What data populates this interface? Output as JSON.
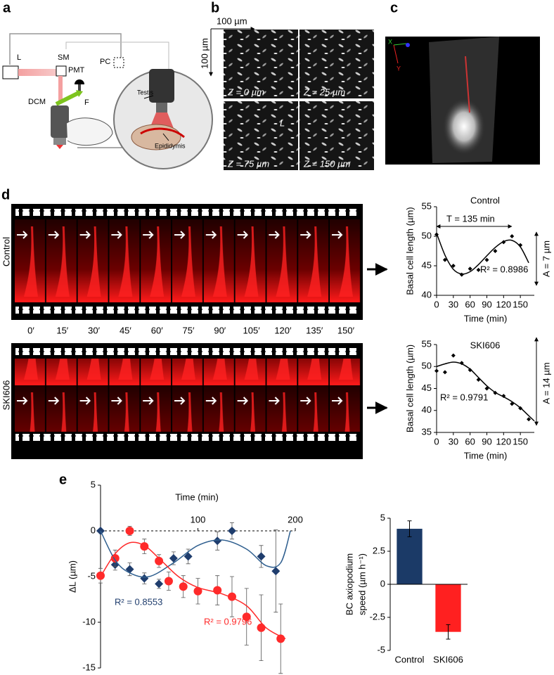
{
  "panel_labels": [
    "a",
    "b",
    "c",
    "d",
    "e"
  ],
  "panel_a": {
    "labels": [
      "L",
      "SM",
      "PC",
      "PMT",
      "DCM",
      "F",
      "Testis",
      "Epididymis"
    ]
  },
  "panel_b": {
    "scale_x": "100 µm",
    "scale_y": "100 µm",
    "tiles": [
      "Z = 0 µm",
      "Z = 25 µm",
      "Z = 75 µm",
      "Z = 150 µm"
    ],
    "marker": "L"
  },
  "panel_c": {
    "axes": [
      "X",
      "Y"
    ]
  },
  "panel_d": {
    "strips": [
      "Control",
      "SKI606"
    ],
    "times": [
      "0′",
      "15′",
      "30′",
      "45′",
      "60′",
      "75′",
      "90′",
      "105′",
      "120′",
      "135′",
      "150′"
    ]
  },
  "chart_data": [
    {
      "type": "scatter",
      "title": "Control",
      "xlabel": "Time (min)",
      "ylabel": "Basal cell length (µm)",
      "xlim": [
        0,
        175
      ],
      "ylim": [
        40,
        55
      ],
      "xticks": [
        0,
        30,
        60,
        90,
        120,
        150
      ],
      "yticks": [
        40,
        45,
        50,
        55
      ],
      "series": [
        {
          "x": [
            0,
            15,
            30,
            45,
            60,
            75,
            90,
            105,
            120,
            135,
            150
          ],
          "values": [
            50.3,
            46,
            45,
            43.5,
            44.5,
            44.3,
            46,
            47.5,
            49,
            50,
            48.5
          ],
          "color": "#000000",
          "marker": "diamond"
        },
        {
          "x": [
            0,
            15,
            30,
            45,
            60,
            75,
            90,
            105,
            120,
            135,
            150,
            165
          ],
          "values": [
            50.5,
            46.8,
            44.4,
            43.6,
            44,
            45.2,
            46.7,
            48.1,
            49.1,
            49.3,
            48.2,
            45.5
          ],
          "color": "#000000",
          "style": "line"
        }
      ],
      "annotations": [
        {
          "text": "T = 135 min",
          "color": "#000000"
        },
        {
          "text": "R² = 0.8986",
          "color": "#000000"
        },
        {
          "text": "A = 7 µm",
          "color": "#000000"
        }
      ]
    },
    {
      "type": "scatter",
      "title": "SKI606",
      "xlabel": "Time (min)",
      "ylabel": "Basal cell length (µm)",
      "xlim": [
        0,
        175
      ],
      "ylim": [
        35,
        55
      ],
      "xticks": [
        0,
        30,
        60,
        90,
        120,
        150
      ],
      "yticks": [
        35,
        40,
        45,
        50,
        55
      ],
      "series": [
        {
          "x": [
            0,
            15,
            30,
            45,
            60,
            75,
            90,
            105,
            120,
            135,
            150,
            165
          ],
          "values": [
            49,
            48.7,
            52.5,
            50.8,
            49.2,
            47,
            45,
            44,
            43.3,
            41.5,
            40.5,
            38
          ],
          "color": "#000000",
          "marker": "diamond"
        },
        {
          "x": [
            0,
            15,
            30,
            45,
            60,
            75,
            90,
            105,
            120,
            135,
            150,
            165,
            175
          ],
          "values": [
            50,
            50.6,
            51,
            50.6,
            49.4,
            47.5,
            45.6,
            44.1,
            43.1,
            42,
            40.6,
            38.8,
            37.6
          ],
          "color": "#000000",
          "style": "line"
        }
      ],
      "annotations": [
        {
          "text": "R² = 0.9791",
          "color": "#000000"
        },
        {
          "text": "A = 14 µm",
          "color": "#000000"
        }
      ]
    },
    {
      "type": "scatter",
      "xlabel": "Time (min)",
      "ylabel": "ΔL (µm)",
      "xlim": [
        0,
        200
      ],
      "ylim": [
        -15,
        5
      ],
      "xticks": [
        100,
        200
      ],
      "yticks": [
        -15,
        -10,
        -5,
        0,
        5
      ],
      "series": [
        {
          "x": [
            0,
            15,
            30,
            45,
            60,
            75,
            90,
            120,
            135,
            165,
            180
          ],
          "values": [
            0,
            -3.7,
            -4.2,
            -5.2,
            -5.8,
            -3,
            -2.8,
            -1.1,
            0,
            -2.8,
            -4.4
          ],
          "errors": [
            0,
            0.6,
            0.7,
            0.6,
            0.5,
            0.7,
            0.8,
            1,
            0.9,
            1.2,
            4.5
          ],
          "color": "#1f3d6d",
          "marker": "diamond"
        },
        {
          "x": [
            0,
            15,
            30,
            45,
            60,
            70,
            85,
            100,
            120,
            135,
            150,
            165,
            185
          ],
          "values": [
            -4.9,
            -3,
            0,
            -1.7,
            -3.3,
            -5.5,
            -6.1,
            -6.6,
            -6.5,
            -7.2,
            -9.4,
            -10.6,
            -11.8
          ],
          "errors": [
            0.8,
            0.9,
            0.5,
            0.8,
            0.7,
            1,
            1.2,
            1.4,
            1.6,
            2.2,
            3.1,
            3.6,
            3.8
          ],
          "color": "#ff2a2a",
          "marker": "circle"
        },
        {
          "x": [
            0,
            15,
            30,
            50,
            75,
            100,
            125,
            150,
            170,
            185,
            195
          ],
          "values": [
            0,
            -3.2,
            -4.6,
            -5,
            -3.5,
            -1.6,
            -1,
            -2,
            -3.8,
            -3.5,
            0
          ],
          "color": "#2f5f8f",
          "style": "line"
        },
        {
          "x": [
            0,
            15,
            30,
            45,
            60,
            80,
            100,
            125,
            150,
            170,
            190
          ],
          "values": [
            -5,
            -2.5,
            -1.3,
            -1.6,
            -3,
            -5,
            -6.2,
            -6.9,
            -8.2,
            -10.6,
            -11.8
          ],
          "color": "#ff2a2a",
          "style": "line"
        }
      ],
      "annotations": [
        {
          "text": "R² = 0.8553",
          "color": "#1f3d6d"
        },
        {
          "text": "R² = 0.9796",
          "color": "#ff2a2a"
        }
      ]
    },
    {
      "type": "bar",
      "ylabel": [
        "BC axiopodium",
        "speed (µm h⁻¹)"
      ],
      "categories": [
        "Control",
        "SKI606"
      ],
      "values": [
        4.2,
        -3.6
      ],
      "errors": [
        0.6,
        0.55
      ],
      "colors": [
        "#1b3a67",
        "#ff2020"
      ],
      "ylim": [
        -5,
        5
      ],
      "yticks": [
        -5,
        -2.5,
        0,
        2.5,
        5
      ]
    }
  ]
}
